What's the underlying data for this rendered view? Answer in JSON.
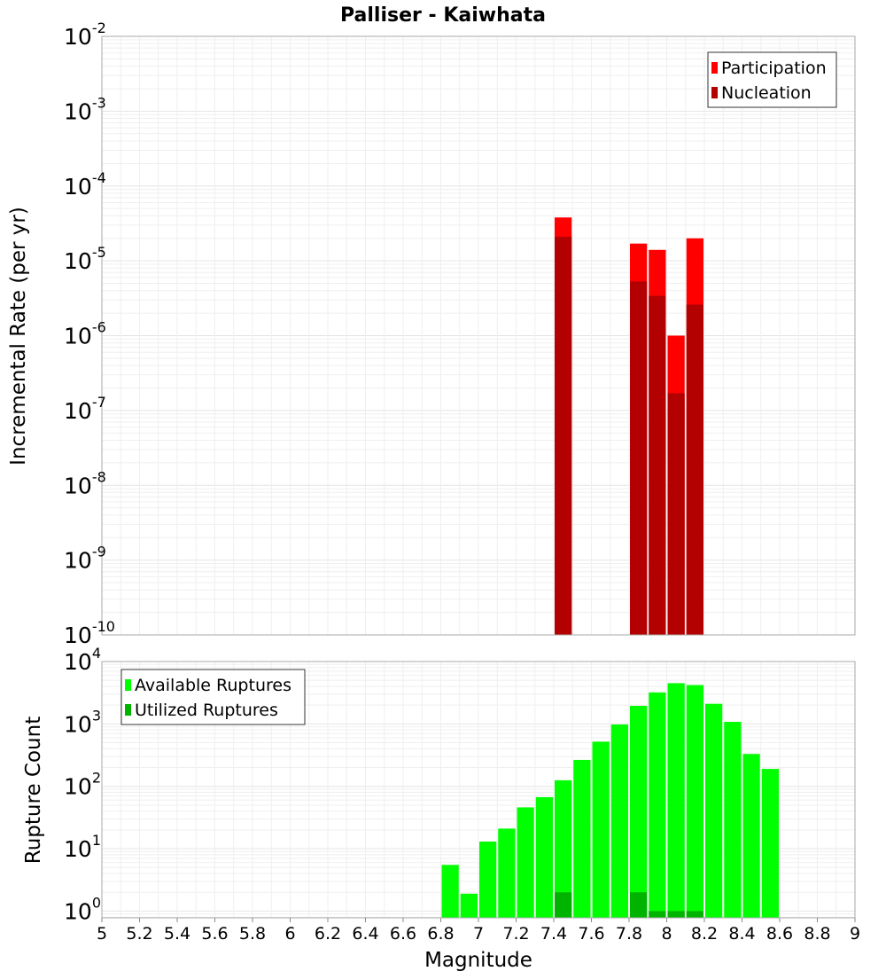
{
  "chart_data": [
    {
      "type": "bar",
      "title": "Palliser - Kaiwhata",
      "ylabel": "Incremental Rate (per yr)",
      "xlabel": "",
      "xlim": [
        5,
        9
      ],
      "ylim": [
        1e-10,
        0.01
      ],
      "yscale": "log",
      "y_tick_exponents": [
        "-10",
        "-9",
        "-8",
        "-7",
        "-6",
        "-5",
        "-4",
        "-3",
        "-2"
      ],
      "y_tick_base": "10",
      "legend_position": "top-right",
      "series": [
        {
          "name": "Participation",
          "color": "#ff0000",
          "points": [
            {
              "x": 7.45,
              "y": 3.8e-05
            },
            {
              "x": 7.85,
              "y": 1.7e-05
            },
            {
              "x": 7.95,
              "y": 1.4e-05
            },
            {
              "x": 8.05,
              "y": 1e-06
            },
            {
              "x": 8.15,
              "y": 2e-05
            }
          ]
        },
        {
          "name": "Nucleation",
          "color": "#b30000",
          "points": [
            {
              "x": 7.45,
              "y": 2.1e-05
            },
            {
              "x": 7.85,
              "y": 5.3e-06
            },
            {
              "x": 7.95,
              "y": 3.4e-06
            },
            {
              "x": 8.05,
              "y": 1.7e-07
            },
            {
              "x": 8.15,
              "y": 2.6e-06
            }
          ]
        }
      ]
    },
    {
      "type": "bar",
      "title": "",
      "ylabel": "Rupture Count",
      "xlabel": "Magnitude",
      "xlim": [
        5,
        9
      ],
      "ylim": [
        0.78,
        10000
      ],
      "yscale": "log",
      "y_tick_exponents": [
        "0",
        "1",
        "2",
        "3",
        "4"
      ],
      "y_tick_base": "10",
      "x_tick_labels": [
        "5",
        "5.2",
        "5.4",
        "5.6",
        "5.8",
        "6",
        "6.2",
        "6.4",
        "6.6",
        "6.8",
        "7",
        "7.2",
        "7.4",
        "7.6",
        "7.8",
        "8",
        "8.2",
        "8.4",
        "8.6",
        "8.8",
        "9"
      ],
      "legend_position": "top-left",
      "series": [
        {
          "name": "Available Ruptures",
          "color": "#00ff00",
          "points": [
            {
              "x": 6.85,
              "y": 5.5
            },
            {
              "x": 6.95,
              "y": 1.9
            },
            {
              "x": 7.05,
              "y": 13
            },
            {
              "x": 7.15,
              "y": 21
            },
            {
              "x": 7.25,
              "y": 46
            },
            {
              "x": 7.35,
              "y": 67
            },
            {
              "x": 7.45,
              "y": 125
            },
            {
              "x": 7.55,
              "y": 265
            },
            {
              "x": 7.65,
              "y": 520
            },
            {
              "x": 7.75,
              "y": 980
            },
            {
              "x": 7.85,
              "y": 1950
            },
            {
              "x": 7.95,
              "y": 3200
            },
            {
              "x": 8.05,
              "y": 4500
            },
            {
              "x": 8.15,
              "y": 4200
            },
            {
              "x": 8.25,
              "y": 2100
            },
            {
              "x": 8.35,
              "y": 1080
            },
            {
              "x": 8.45,
              "y": 330
            },
            {
              "x": 8.55,
              "y": 190
            }
          ]
        },
        {
          "name": "Utilized Ruptures",
          "color": "#00b300",
          "points": [
            {
              "x": 7.45,
              "y": 2
            },
            {
              "x": 7.85,
              "y": 2
            },
            {
              "x": 7.95,
              "y": 1
            },
            {
              "x": 8.05,
              "y": 1
            },
            {
              "x": 8.15,
              "y": 1
            }
          ]
        }
      ]
    }
  ]
}
